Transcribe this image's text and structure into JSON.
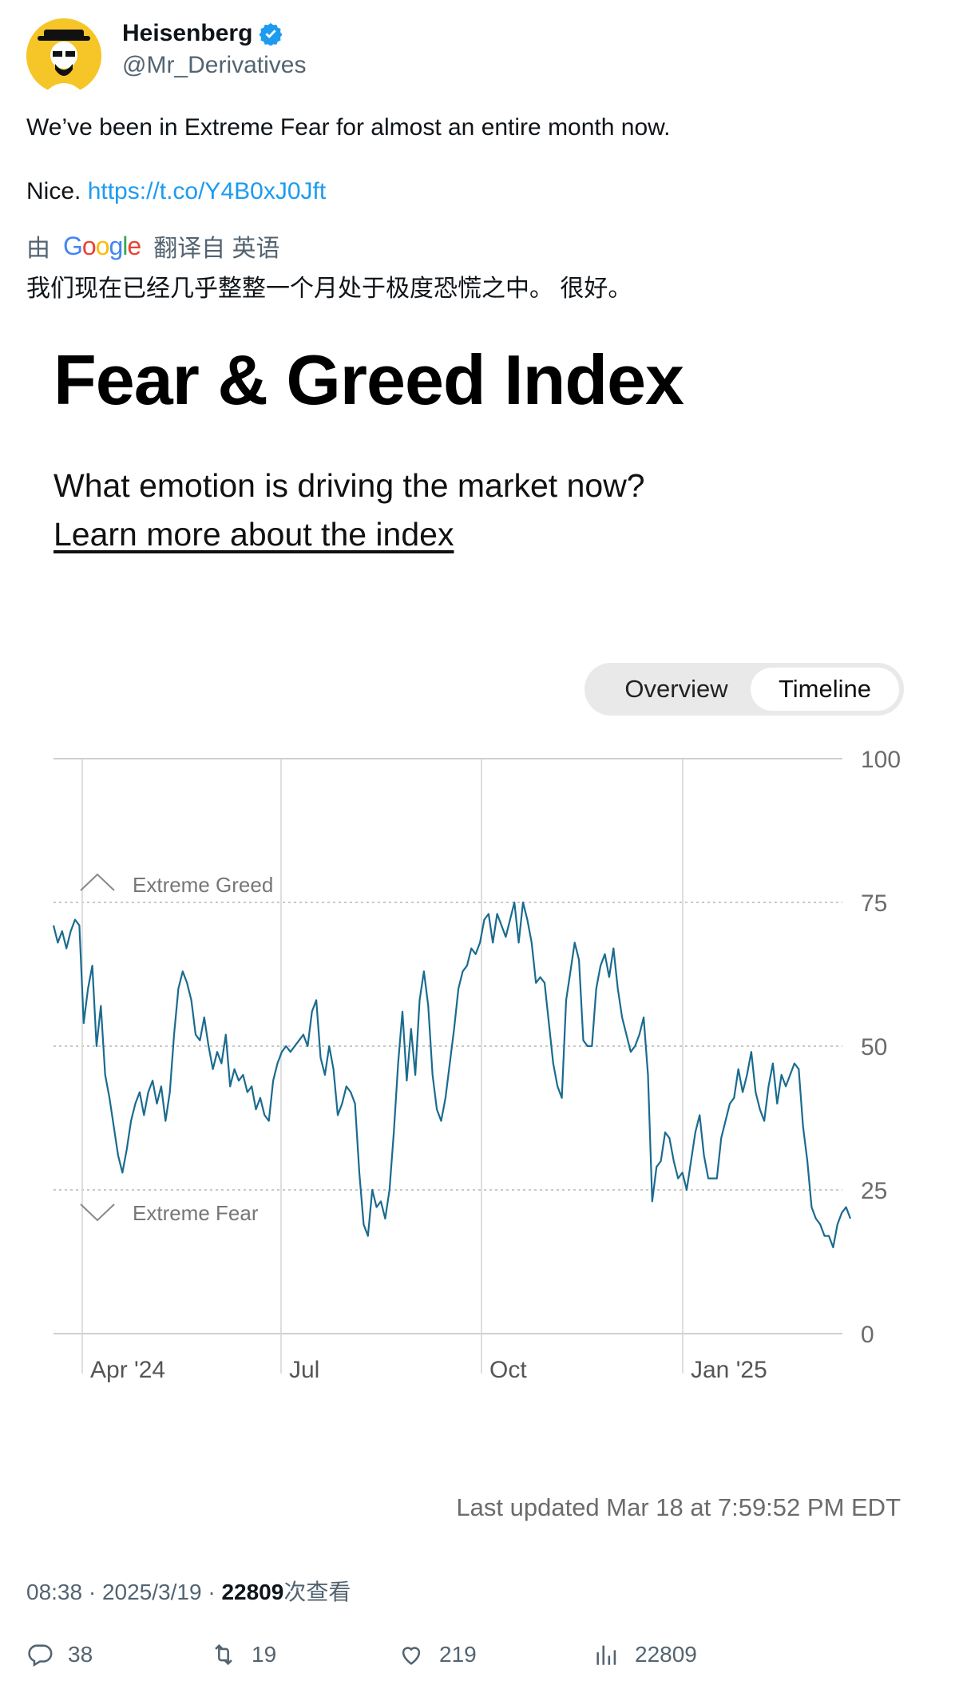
{
  "user": {
    "display_name": "Heisenberg",
    "handle": "@Mr_Derivatives"
  },
  "tweet": {
    "line1": "We’ve been in Extreme Fear for almost an entire month now.",
    "line2_prefix": "Nice.",
    "link": "https://t.co/Y4B0xJ0Jft"
  },
  "translation": {
    "prefix": "由",
    "provider": "Google",
    "suffix": "翻译自 英语",
    "text": "我们现在已经几乎整整一个月处于极度恐慌之中。 很好。"
  },
  "card": {
    "title": "Fear & Greed Index",
    "subtitle": "What emotion is driving the market now?",
    "learn_more": "Learn more about the index",
    "toggle": {
      "overview": "Overview",
      "timeline": "Timeline",
      "selected": "Timeline"
    },
    "last_updated": "Last updated Mar 18 at 7:59:52 PM EDT"
  },
  "chart_data": {
    "type": "line",
    "title": "",
    "xlabel": "",
    "ylabel": "",
    "ylim": [
      0,
      100
    ],
    "y_ticks": [
      0,
      25,
      50,
      75,
      100
    ],
    "x_ticks": [
      "Apr '24",
      "Jul",
      "Oct",
      "Jan '25"
    ],
    "zones": {
      "greed_label": "Extreme Greed",
      "fear_label": "Extreme Fear"
    },
    "line_color": "#1a6b8f",
    "series": [
      {
        "values": [
          71,
          68,
          70,
          67,
          70,
          72,
          71,
          54,
          60,
          64,
          50,
          57,
          45,
          41,
          36,
          31,
          28,
          32,
          37,
          40,
          42,
          38,
          42,
          44,
          40,
          43,
          37,
          42,
          52,
          60,
          63,
          61,
          58,
          52,
          51,
          55,
          50,
          46,
          49,
          47,
          52,
          43,
          46,
          44,
          45,
          42,
          43,
          39,
          41,
          38,
          37,
          44,
          47,
          49,
          50,
          49,
          50,
          51,
          52,
          50,
          56,
          58,
          48,
          45,
          50,
          46,
          38,
          40,
          43,
          42,
          40,
          28,
          19,
          17,
          25,
          22,
          23,
          20,
          25,
          35,
          47,
          56,
          44,
          53,
          45,
          58,
          63,
          57,
          45,
          39,
          37,
          41,
          47,
          53,
          60,
          63,
          64,
          67,
          66,
          68,
          72,
          73,
          68,
          73,
          71,
          69,
          72,
          75,
          68,
          75,
          72,
          68,
          61,
          62,
          61,
          54,
          47,
          43,
          41,
          58,
          63,
          68,
          65,
          51,
          50,
          50,
          60,
          64,
          66,
          62,
          67,
          60,
          55,
          52,
          49,
          50,
          52,
          55,
          45,
          23,
          29,
          30,
          35,
          34,
          30,
          27,
          28,
          25,
          30,
          35,
          38,
          31,
          27,
          27,
          27,
          34,
          37,
          40,
          41,
          46,
          42,
          45,
          49,
          42,
          39,
          37,
          43,
          47,
          40,
          45,
          43,
          45,
          47,
          46,
          36,
          30,
          22,
          20,
          19,
          17,
          17,
          15,
          19,
          21,
          22,
          20
        ]
      }
    ]
  },
  "stats": {
    "time": "08:38",
    "date": "2025/3/19",
    "views": "22809",
    "views_suffix": "次查看",
    "replies": "38",
    "retweets": "19",
    "likes": "219",
    "view_count": "22809"
  },
  "colors": {
    "link": "#1d9bf0",
    "verified": "#1d9bf0",
    "muted": "#536471",
    "chart_line": "#1a6b8f"
  }
}
